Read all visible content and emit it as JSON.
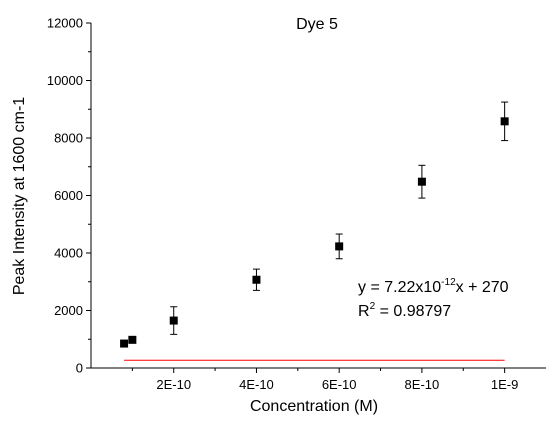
{
  "chart_data": {
    "type": "scatter",
    "title": "Dye 5",
    "xlabel": "Concentration (M)",
    "ylabel": "Peak Intensity at 1600 cm-1",
    "xlim": [
      0,
      1.1e-09
    ],
    "ylim": [
      0,
      12000
    ],
    "x_ticks": [
      {
        "value": 2e-10,
        "label": "2E-10"
      },
      {
        "value": 4e-10,
        "label": "4E-10"
      },
      {
        "value": 6e-10,
        "label": "6E-10"
      },
      {
        "value": 8e-10,
        "label": "8E-10"
      },
      {
        "value": 1e-09,
        "label": "1E-9"
      }
    ],
    "y_ticks": [
      {
        "value": 0,
        "label": "0"
      },
      {
        "value": 2000,
        "label": "2000"
      },
      {
        "value": 4000,
        "label": "4000"
      },
      {
        "value": 6000,
        "label": "6000"
      },
      {
        "value": 8000,
        "label": "8000"
      },
      {
        "value": 10000,
        "label": "10000"
      },
      {
        "value": 12000,
        "label": "12000"
      }
    ],
    "grid": false,
    "series": [
      {
        "points": [
          {
            "x": 8e-11,
            "y": 850,
            "err": 0
          },
          {
            "x": 1e-10,
            "y": 980,
            "err": 0
          },
          {
            "x": 2e-10,
            "y": 1650,
            "err": 480
          },
          {
            "x": 4e-10,
            "y": 3070,
            "err": 370
          },
          {
            "x": 6e-10,
            "y": 4230,
            "err": 430
          },
          {
            "x": 8e-10,
            "y": 6480,
            "err": 570
          },
          {
            "x": 1e-09,
            "y": 8580,
            "err": 670
          }
        ],
        "color": "#000000",
        "marker": "square"
      }
    ],
    "fit": {
      "slope": 7.22e-12,
      "intercept": 270,
      "x_range": [
        8e-11,
        1e-09
      ],
      "color": "#ff0000"
    },
    "annotations": {
      "equation_prefix": "y = 7.22x10",
      "equation_exponent": "-12",
      "equation_suffix": "x + 270",
      "r2_prefix": "R",
      "r2_exponent": "2",
      "r2_suffix": " = 0.98797"
    }
  }
}
